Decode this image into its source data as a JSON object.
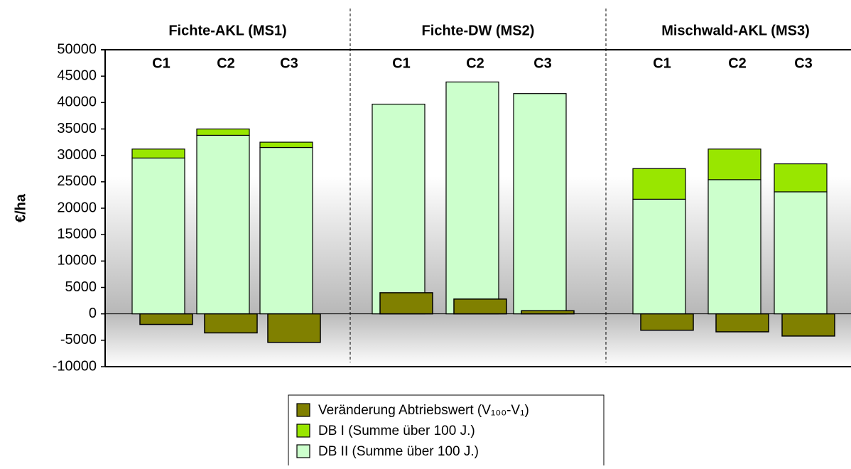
{
  "chart_data": {
    "type": "bar",
    "y_label": "€/ha",
    "groups": [
      "Fichte-AKL (MS1)",
      "Fichte-DW (MS2)",
      "Mischwald-AKL (MS3)"
    ],
    "categories": [
      "C1",
      "C2",
      "C3",
      "C1",
      "C2",
      "C3",
      "C1",
      "C2",
      "C3"
    ],
    "series": [
      {
        "name": "Veränderung Abtriebswert (V₁₀₀-V₁)",
        "color": "#808000",
        "values": [
          -2000,
          -3600,
          -5400,
          4000,
          2800,
          600,
          -3100,
          -3400,
          -4200
        ]
      },
      {
        "name": "DB I (Summe über 100 J.)",
        "color": "#99e600",
        "values": [
          1700,
          1200,
          1000,
          0,
          0,
          0,
          5800,
          5800,
          5300
        ]
      },
      {
        "name": "DB II (Summe über 100 J.)",
        "color": "#ccffcc",
        "values": [
          29500,
          33800,
          31500,
          39700,
          43900,
          41700,
          21700,
          25400,
          23100
        ]
      }
    ],
    "ylim": [
      -10000,
      50000
    ],
    "yticks": [
      -10000,
      -5000,
      0,
      5000,
      10000,
      15000,
      20000,
      25000,
      30000,
      35000,
      40000,
      45000,
      50000
    ],
    "grid": false
  }
}
